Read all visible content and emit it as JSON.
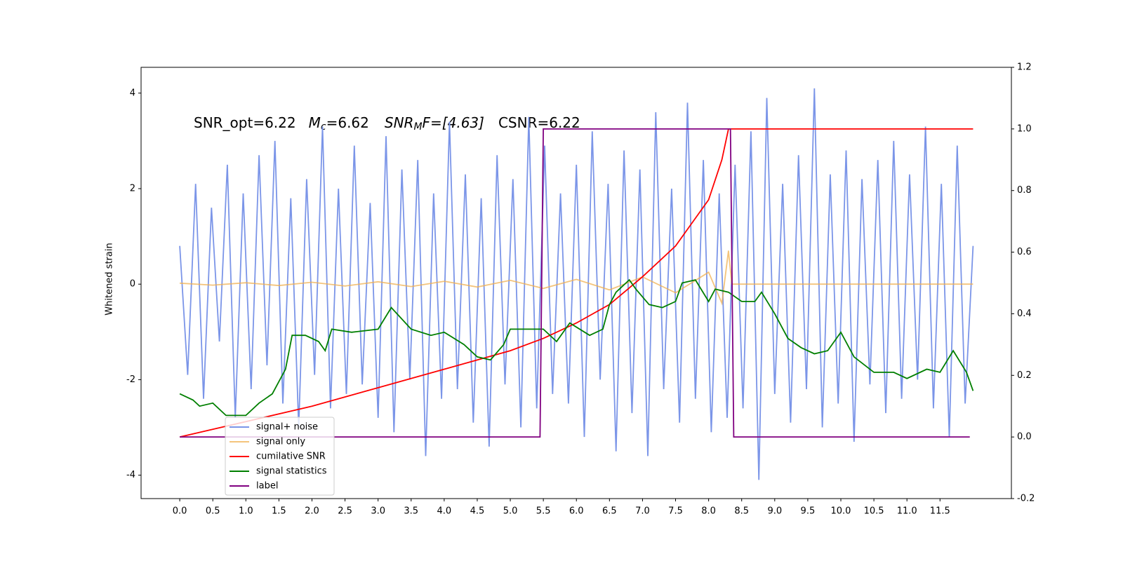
{
  "chart_data": {
    "type": "line",
    "y_label": "Whitened strain",
    "annotation": [
      "SNR_opt=6.22",
      "M",
      "c",
      "=6.62",
      "SNR",
      "M",
      "F=[4.63]",
      "CSNR=6.22"
    ],
    "xlim": [
      -0.585,
      12.58
    ],
    "xticks": [
      {
        "value": 0,
        "label": "0.0"
      },
      0.5,
      {
        "value": 1,
        "label": "1.0"
      },
      1.5,
      {
        "value": 2,
        "label": "2.0"
      },
      2.5,
      {
        "value": 3,
        "label": "3.0"
      },
      3.5,
      {
        "value": 4,
        "label": "4.0"
      },
      4.5,
      {
        "value": 5,
        "label": "5.0"
      },
      5.5,
      {
        "value": 6,
        "label": "6.0"
      },
      6.5,
      {
        "value": 7,
        "label": "7.0"
      },
      7.5,
      {
        "value": 8,
        "label": "8.0"
      },
      8.5,
      {
        "value": 9,
        "label": "9.0"
      },
      9.5,
      {
        "value": 10,
        "label": "10.0"
      },
      10.5,
      {
        "value": 11,
        "label": "11.0"
      },
      11.5
    ],
    "ylim": [
      -4.49,
      4.54
    ],
    "yticks": [
      -4,
      -2,
      0,
      2,
      4
    ],
    "y2lim": [
      -0.2,
      1.2
    ],
    "y2ticks": [
      -0.2,
      {
        "value": 0,
        "label": "0.0"
      },
      0.2,
      0.4,
      0.6,
      0.8,
      {
        "value": 1,
        "label": "1.0"
      },
      1.2
    ],
    "legend": "lower left",
    "series": [
      {
        "name": "signal+ noise",
        "color": "#7b95e8",
        "x": [
          0,
          0.12,
          0.24,
          0.36,
          0.48,
          0.6,
          0.72,
          0.84,
          0.96,
          1.08,
          1.2,
          1.32,
          1.44,
          1.56,
          1.68,
          1.8,
          1.92,
          2.04,
          2.16,
          2.28,
          2.4,
          2.52,
          2.64,
          2.76,
          2.88,
          3,
          3.12,
          3.24,
          3.36,
          3.48,
          3.6,
          3.72,
          3.84,
          3.96,
          4.08,
          4.2,
          4.32,
          4.44,
          4.56,
          4.68,
          4.8,
          4.92,
          5.04,
          5.16,
          5.28,
          5.4,
          5.52,
          5.64,
          5.76,
          5.88,
          6,
          6.12,
          6.24,
          6.36,
          6.48,
          6.6,
          6.72,
          6.84,
          6.96,
          7.08,
          7.2,
          7.32,
          7.44,
          7.56,
          7.68,
          7.8,
          7.92,
          8.04,
          8.16,
          8.28,
          8.4,
          8.52,
          8.64,
          8.76,
          8.88,
          9,
          9.12,
          9.24,
          9.36,
          9.48,
          9.6,
          9.72,
          9.84,
          9.96,
          10.08,
          10.2,
          10.32,
          10.44,
          10.56,
          10.68,
          10.8,
          10.92,
          11.04,
          11.16,
          11.28,
          11.4,
          11.52,
          11.64,
          11.76,
          11.88,
          12
        ],
        "values": [
          0.8,
          -1.9,
          2.1,
          -2.4,
          1.6,
          -1.2,
          2.5,
          -2.8,
          1.9,
          -2.2,
          2.7,
          -1.7,
          3.0,
          -2.5,
          1.8,
          -3.0,
          2.2,
          -1.9,
          3.3,
          -2.6,
          2.0,
          -2.3,
          2.9,
          -2.1,
          1.7,
          -2.8,
          3.1,
          -3.1,
          2.4,
          -2.0,
          2.6,
          -3.6,
          1.9,
          -2.4,
          3.4,
          -2.2,
          2.3,
          -2.9,
          1.8,
          -3.4,
          2.7,
          -2.1,
          2.2,
          -3.0,
          3.5,
          -2.6,
          2.9,
          -2.3,
          1.9,
          -2.5,
          2.5,
          -3.2,
          3.2,
          -2.0,
          2.1,
          -3.5,
          2.8,
          -2.7,
          2.4,
          -3.6,
          3.6,
          -2.2,
          2.0,
          -2.9,
          3.8,
          -2.4,
          2.6,
          -3.1,
          1.9,
          -2.8,
          2.5,
          -2.6,
          3.2,
          -4.1,
          3.9,
          -2.3,
          2.1,
          -2.9,
          2.7,
          -2.2,
          4.1,
          -3.0,
          2.3,
          -2.5,
          2.8,
          -3.3,
          2.2,
          -2.1,
          2.6,
          -2.7,
          3.0,
          -2.4,
          2.3,
          -2.0,
          3.3,
          -2.6,
          2.1,
          -3.2,
          2.9,
          -2.5,
          0.8
        ]
      },
      {
        "name": "signal only",
        "color": "#f0b050",
        "x": [
          0,
          0.5,
          1,
          1.5,
          2,
          2.5,
          3,
          3.5,
          4,
          4.5,
          5,
          5.5,
          6,
          6.5,
          7,
          7.5,
          8,
          8.2,
          8.3,
          8.35,
          12
        ],
        "values": [
          0.02,
          -0.02,
          0.03,
          -0.03,
          0.04,
          -0.04,
          0.05,
          -0.05,
          0.06,
          -0.06,
          0.08,
          -0.09,
          0.1,
          -0.12,
          0.15,
          -0.18,
          0.25,
          -0.4,
          0.7,
          0,
          0
        ]
      },
      {
        "name": "cumilative SNR",
        "color": "#ff0000",
        "axis": "y2",
        "x": [
          0,
          1,
          2,
          3,
          4,
          5,
          5.5,
          6,
          6.5,
          7,
          7.5,
          8,
          8.2,
          8.3,
          12
        ],
        "values": [
          0,
          0.05,
          0.1,
          0.16,
          0.22,
          0.28,
          0.32,
          0.37,
          0.43,
          0.52,
          0.62,
          0.77,
          0.9,
          1,
          1
        ]
      },
      {
        "name": "signal statistics",
        "color": "#007f00",
        "axis": "y2",
        "x": [
          0,
          0.2,
          0.3,
          0.5,
          0.7,
          1,
          1.2,
          1.4,
          1.6,
          1.7,
          1.9,
          2.1,
          2.2,
          2.3,
          2.6,
          3,
          3.2,
          3.5,
          3.8,
          4,
          4.3,
          4.5,
          4.7,
          4.9,
          5,
          5.3,
          5.5,
          5.7,
          5.9,
          6.2,
          6.4,
          6.5,
          6.6,
          6.8,
          6.9,
          7.1,
          7.3,
          7.5,
          7.6,
          7.8,
          8,
          8.1,
          8.3,
          8.5,
          8.7,
          8.8,
          9,
          9.2,
          9.4,
          9.6,
          9.8,
          10,
          10.2,
          10.5,
          10.8,
          11,
          11.3,
          11.5,
          11.7,
          11.9,
          12
        ],
        "values": [
          0.14,
          0.12,
          0.1,
          0.11,
          0.07,
          0.07,
          0.11,
          0.14,
          0.22,
          0.33,
          0.33,
          0.31,
          0.28,
          0.35,
          0.34,
          0.35,
          0.42,
          0.35,
          0.33,
          0.34,
          0.3,
          0.26,
          0.25,
          0.3,
          0.35,
          0.35,
          0.35,
          0.31,
          0.37,
          0.33,
          0.35,
          0.43,
          0.47,
          0.51,
          0.48,
          0.43,
          0.42,
          0.44,
          0.5,
          0.51,
          0.44,
          0.48,
          0.47,
          0.44,
          0.44,
          0.47,
          0.4,
          0.32,
          0.29,
          0.27,
          0.28,
          0.34,
          0.26,
          0.21,
          0.21,
          0.19,
          0.22,
          0.21,
          0.28,
          0.21,
          0.15
        ]
      },
      {
        "name": "label",
        "color": "#800080",
        "axis": "y2",
        "x": [
          0,
          5.45,
          5.5,
          8.33,
          8.38,
          11.95
        ],
        "values": [
          0,
          0,
          1,
          1,
          0,
          0
        ]
      }
    ]
  }
}
